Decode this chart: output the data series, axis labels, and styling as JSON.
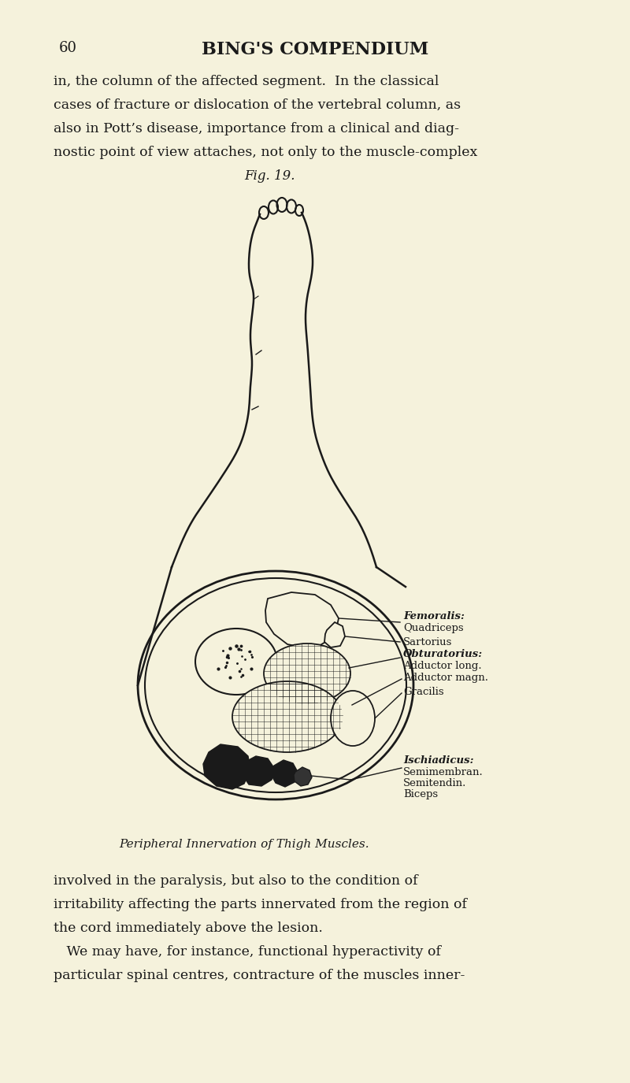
{
  "bg_color": "#f5f2dc",
  "page_num": "60",
  "header": "BING'S COMPENDIUM",
  "top_text_lines": [
    "in, the column of the affected segment.  In the classical",
    "cases of fracture or dislocation of the vertebral column, as",
    "also in Pott’s disease, importance from a clinical and diag-",
    "nostic point of view attaches, not only to the muscle-complex"
  ],
  "fig_label": "Fig. 19.",
  "caption": "Peripheral Innervation of Thigh Muscles.",
  "bottom_text_lines": [
    "involved in the paralysis, but also to the condition of",
    "irritability affecting the parts innervated from the region of",
    "the cord immediately above the lesion.",
    "   We may have, for instance, functional hyperactivity of",
    "particular spinal centres, contracture of the muscles inner-"
  ],
  "labels": {
    "femoralis": "Femoralis:",
    "quadriceps": "Quadriceps",
    "sartorius": "Sartorius",
    "obturatorius": "Obturatorius:",
    "adductor_long": "Adductor long.",
    "adductor_magn": "Adductor magn.",
    "gracilis": "Gracilis",
    "ischiadicus": "Ischiadicus:",
    "semimembran": "Semimembran.",
    "semitendin": "Semitendin.",
    "biceps": "Biceps"
  },
  "text_color": "#1a1a1a",
  "line_color": "#1a1a1a"
}
